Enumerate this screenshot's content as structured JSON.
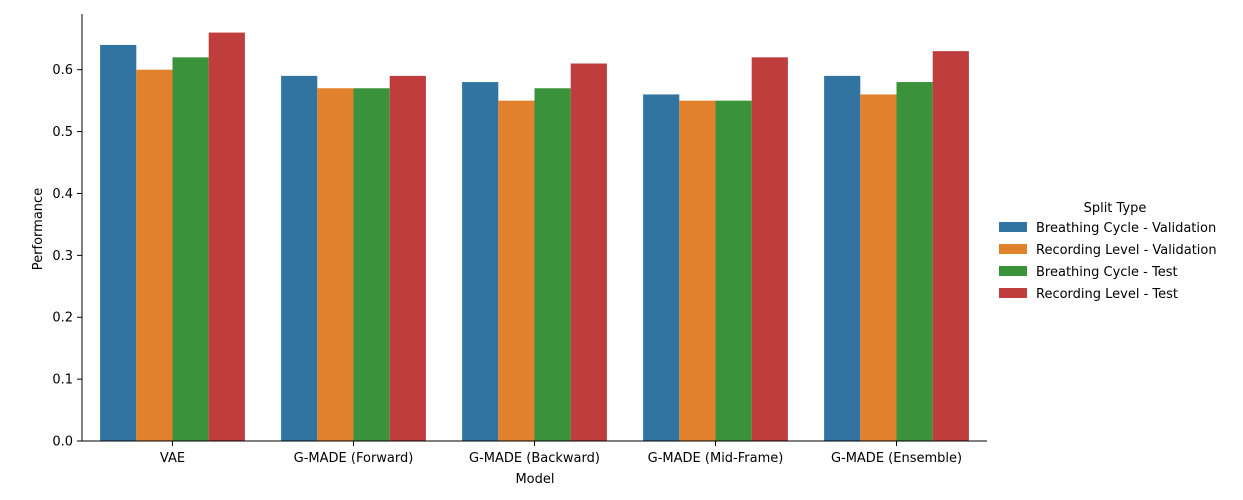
{
  "chart_data": {
    "type": "bar",
    "xlabel": "Model",
    "ylabel": "Performance",
    "categories": [
      "VAE",
      "G-MADE (Forward)",
      "G-MADE (Backward)",
      "G-MADE (Mid-Frame)",
      "G-MADE (Ensemble)"
    ],
    "series": [
      {
        "name": "Breathing Cycle - Validation",
        "color": "#3274a1",
        "values": [
          0.64,
          0.59,
          0.58,
          0.56,
          0.59
        ]
      },
      {
        "name": "Recording Level - Validation",
        "color": "#e1812c",
        "values": [
          0.6,
          0.57,
          0.55,
          0.55,
          0.56
        ]
      },
      {
        "name": "Breathing Cycle - Test",
        "color": "#3a923a",
        "values": [
          0.62,
          0.57,
          0.57,
          0.55,
          0.58
        ]
      },
      {
        "name": "Recording Level - Test",
        "color": "#c03d3e",
        "values": [
          0.66,
          0.59,
          0.61,
          0.62,
          0.63
        ]
      }
    ],
    "ylim": [
      0,
      0.69
    ],
    "yticks": [
      "0.0",
      "0.1",
      "0.2",
      "0.3",
      "0.4",
      "0.5",
      "0.6"
    ],
    "grid": false,
    "legend": {
      "title": "Split Type",
      "placement": "right"
    }
  }
}
